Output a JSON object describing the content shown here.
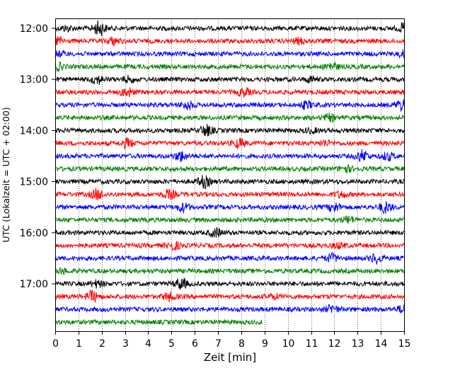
{
  "chart_data": {
    "type": "line",
    "subtype": "helicorder",
    "xlabel": "Zeit  [min]",
    "ylabel": "UTC (Lokalzeit = UTC + 02:00)",
    "xlim": [
      0,
      15
    ],
    "x_ticks": [
      "0",
      "1",
      "2",
      "3",
      "4",
      "5",
      "6",
      "7",
      "8",
      "9",
      "10",
      "11",
      "12",
      "13",
      "14",
      "15"
    ],
    "y_tick_labels": [
      "12:00",
      "13:00",
      "14:00",
      "15:00",
      "16:00",
      "17:00"
    ],
    "y_tick_traces": [
      0,
      4,
      8,
      12,
      16,
      20
    ],
    "minutes_per_trace": 15,
    "grid": "vertical dotted at each minute",
    "color_cycle": [
      "#000000",
      "#ff0000",
      "#0000ff",
      "#008000"
    ],
    "traces": [
      {
        "start": "12:00",
        "end_min": 15,
        "bursts": [
          [
            1.9,
            1.0
          ],
          [
            0.5,
            0.35
          ],
          [
            15.0,
            0.6
          ]
        ]
      },
      {
        "start": "12:15",
        "end_min": 15,
        "bursts": [
          [
            0.1,
            0.6
          ],
          [
            2.5,
            0.5
          ],
          [
            10.5,
            0.4
          ]
        ]
      },
      {
        "start": "12:30",
        "end_min": 15,
        "bursts": [
          [
            0.2,
            0.3
          ],
          [
            15.0,
            0.4
          ]
        ]
      },
      {
        "start": "12:45",
        "end_min": 15,
        "bursts": [
          [
            0.1,
            0.5
          ],
          [
            11.9,
            0.55
          ]
        ]
      },
      {
        "start": "13:00",
        "end_min": 15,
        "bursts": [
          [
            1.8,
            0.6
          ],
          [
            3.2,
            0.4
          ],
          [
            11.0,
            0.35
          ]
        ]
      },
      {
        "start": "13:15",
        "end_min": 15,
        "bursts": [
          [
            3.1,
            0.6
          ],
          [
            8.1,
            0.55
          ]
        ]
      },
      {
        "start": "13:30",
        "end_min": 15,
        "bursts": [
          [
            5.7,
            0.55
          ],
          [
            10.8,
            0.5
          ],
          [
            14.9,
            0.8
          ]
        ]
      },
      {
        "start": "13:45",
        "end_min": 15,
        "bursts": [
          [
            11.8,
            0.45
          ]
        ]
      },
      {
        "start": "14:00",
        "end_min": 15,
        "bursts": [
          [
            6.5,
            0.75
          ],
          [
            11.0,
            0.3
          ]
        ]
      },
      {
        "start": "14:15",
        "end_min": 15,
        "bursts": [
          [
            3.1,
            0.6
          ],
          [
            7.9,
            0.6
          ],
          [
            11.6,
            0.35
          ]
        ]
      },
      {
        "start": "14:30",
        "end_min": 15,
        "bursts": [
          [
            5.4,
            0.7
          ],
          [
            13.2,
            0.8
          ],
          [
            14.3,
            0.55
          ]
        ]
      },
      {
        "start": "14:45",
        "end_min": 15,
        "bursts": [
          [
            12.5,
            0.45
          ]
        ]
      },
      {
        "start": "15:00",
        "end_min": 15,
        "bursts": [
          [
            6.4,
            0.8
          ]
        ]
      },
      {
        "start": "15:15",
        "end_min": 15,
        "bursts": [
          [
            1.8,
            0.7
          ],
          [
            4.9,
            0.6
          ],
          [
            12.3,
            0.4
          ]
        ]
      },
      {
        "start": "15:30",
        "end_min": 15,
        "bursts": [
          [
            5.5,
            0.6
          ],
          [
            12.0,
            0.6
          ],
          [
            14.2,
            0.75
          ]
        ]
      },
      {
        "start": "15:45",
        "end_min": 15,
        "bursts": [
          [
            12.6,
            0.45
          ]
        ]
      },
      {
        "start": "16:00",
        "end_min": 15,
        "bursts": [
          [
            6.9,
            0.6
          ]
        ]
      },
      {
        "start": "16:15",
        "end_min": 15,
        "bursts": [
          [
            5.1,
            0.55
          ],
          [
            12.2,
            0.35
          ]
        ]
      },
      {
        "start": "16:30",
        "end_min": 15,
        "bursts": [
          [
            11.9,
            0.55
          ],
          [
            13.8,
            0.65
          ]
        ]
      },
      {
        "start": "16:45",
        "end_min": 15,
        "bursts": [
          [
            0.3,
            0.3
          ]
        ]
      },
      {
        "start": "17:00",
        "end_min": 15,
        "bursts": [
          [
            1.8,
            0.45
          ],
          [
            5.4,
            0.75
          ]
        ]
      },
      {
        "start": "17:15",
        "end_min": 15,
        "bursts": [
          [
            1.6,
            0.75
          ],
          [
            4.9,
            0.55
          ],
          [
            9.4,
            0.3
          ]
        ]
      },
      {
        "start": "17:30",
        "end_min": 15,
        "bursts": [
          [
            11.9,
            0.55
          ],
          [
            15.0,
            0.6
          ]
        ]
      },
      {
        "start": "17:45",
        "end_min": 8.9,
        "bursts": []
      }
    ]
  }
}
